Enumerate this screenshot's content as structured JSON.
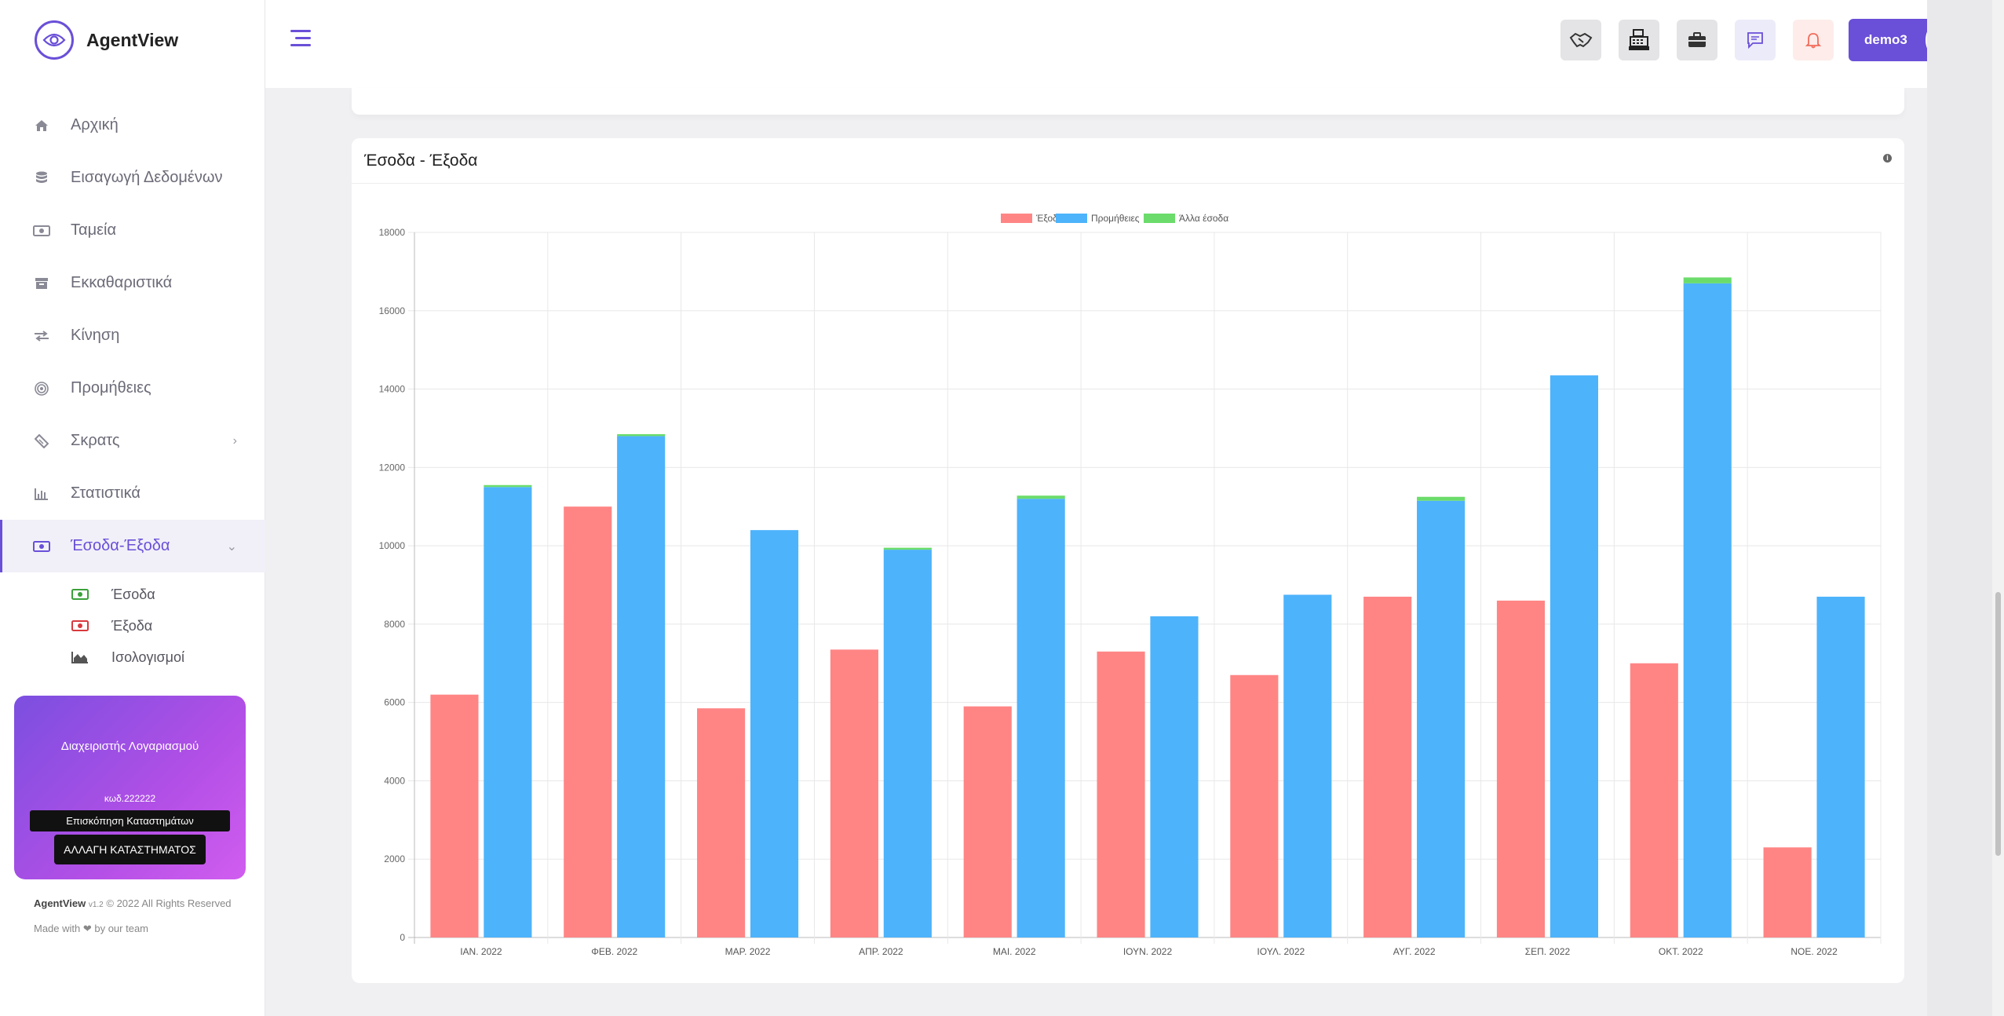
{
  "brand": {
    "name": "AgentView"
  },
  "nav": [
    {
      "label": "Αρχική",
      "icon": "home-icon"
    },
    {
      "label": "Εισαγωγή Δεδομένων",
      "icon": "database-icon"
    },
    {
      "label": "Ταμεία",
      "icon": "cash-icon"
    },
    {
      "label": "Εκκαθαριστικά",
      "icon": "archive-icon"
    },
    {
      "label": "Κίνηση",
      "icon": "exchange-icon"
    },
    {
      "label": "Προμήθειες",
      "icon": "target-icon"
    },
    {
      "label": "Σκρατς",
      "icon": "ticket-icon"
    },
    {
      "label": "Στατιστικά",
      "icon": "bar-chart-icon"
    },
    {
      "label": "Έσοδα-Έξοδα",
      "icon": "money-icon"
    }
  ],
  "subnav": [
    {
      "label": "Έσοδα",
      "icon": "money-green-icon"
    },
    {
      "label": "Έξοδα",
      "icon": "money-red-icon"
    },
    {
      "label": "Ισολογισμοί",
      "icon": "area-chart-icon"
    }
  ],
  "account": {
    "title": "Διαχειριστής Λογαριασμού",
    "code": "κωδ.222222",
    "overview_btn": "Επισκόπηση Καταστημάτων",
    "change_btn": "ΑΛΛΑΓΗ ΚΑΤΑΣΤΗΜΑΤΟΣ"
  },
  "footer": {
    "app": "AgentView",
    "version": "v1.2",
    "rights": "© 2022 All Rights Reserved",
    "made_with": "Made with ❤ by our team"
  },
  "topbar": {
    "user": "demo3",
    "icons": [
      "handshake-icon",
      "cash-register-icon",
      "briefcase-icon",
      "chat-icon",
      "bell-icon"
    ]
  },
  "card": {
    "title": "Έσοδα - Έξοδα"
  },
  "colors": {
    "accent": "#6a4fd8",
    "expenses": "#ff8585",
    "commissions": "#4db3fb",
    "other_income": "#6bdc6b"
  },
  "chart_data": {
    "type": "bar",
    "title": "",
    "xlabel": "",
    "ylabel": "",
    "ylim": [
      0,
      18000
    ],
    "yticks": [
      "0",
      "2000",
      "4000",
      "6000",
      "8000",
      "10000",
      "12000",
      "14000",
      "16000",
      "18000"
    ],
    "categories": [
      "ΙΑΝ. 2022",
      "ΦΕΒ. 2022",
      "ΜΑΡ. 2022",
      "ΑΠΡ. 2022",
      "ΜΑΙ. 2022",
      "ΙΟΥΝ. 2022",
      "ΙΟΥΛ. 2022",
      "ΑΥΓ. 2022",
      "ΣΕΠ. 2022",
      "ΟΚΤ. 2022",
      "ΝΟΕ. 2022"
    ],
    "legend_position": "top-center",
    "series": [
      {
        "name": "Έξοδα",
        "stack": "expenses",
        "values": [
          6200,
          11000,
          5850,
          7350,
          5900,
          7300,
          6700,
          8700,
          8600,
          7000,
          2300
        ]
      },
      {
        "name": "Προμήθειες",
        "stack": "income",
        "values": [
          11500,
          12800,
          10400,
          9900,
          11200,
          8200,
          8750,
          11150,
          14350,
          16700,
          8700
        ]
      },
      {
        "name": "Άλλα έσοδα",
        "stack": "income",
        "values": [
          50,
          50,
          0,
          50,
          80,
          0,
          0,
          100,
          0,
          150,
          0
        ]
      }
    ],
    "grid": true
  }
}
